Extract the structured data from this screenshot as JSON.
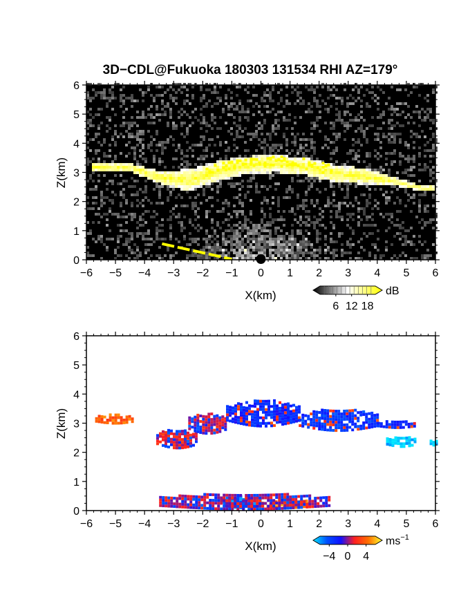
{
  "title": "3D−CDL@Fukuoka 180303 131534 RHI AZ=179°",
  "chart_data": [
    {
      "type": "heatmap",
      "name": "reflectivity",
      "xlabel": "X(km)",
      "ylabel": "Z(km)",
      "xlim": [
        -6,
        6
      ],
      "ylim": [
        0,
        6
      ],
      "xticks": [
        "−6",
        "−5",
        "−4",
        "−3",
        "−2",
        "−1",
        "0",
        "1",
        "2",
        "3",
        "4",
        "5",
        "6"
      ],
      "yticks": [
        "0",
        "1",
        "2",
        "3",
        "4",
        "5",
        "6"
      ],
      "background": "#000000",
      "colorbar": {
        "unit": "dB",
        "ticks": [
          "6",
          "12",
          "18"
        ],
        "tick_values": [
          6,
          12,
          18
        ],
        "range": [
          0,
          21
        ],
        "colors": [
          "#000000",
          "#ffffff",
          "#ffff00"
        ]
      },
      "features": {
        "cloud_layer": {
          "x": [
            -5.6,
            -4.5,
            -3.5,
            -2.5,
            -1.5,
            -0.5,
            0.5,
            1.5,
            2.5,
            3.5,
            4.5,
            5.5
          ],
          "z_bottom": [
            2.95,
            2.95,
            2.55,
            2.3,
            2.65,
            2.9,
            2.95,
            2.85,
            2.6,
            2.55,
            2.5,
            2.3
          ],
          "z_top": [
            3.3,
            3.25,
            3.0,
            3.05,
            3.35,
            3.5,
            3.55,
            3.45,
            3.2,
            3.1,
            2.8,
            2.5
          ]
        },
        "saturated_segments": [
          {
            "x": [
              -1.9,
              2.5
            ],
            "z_band": [
              2.9,
              3.5
            ]
          },
          {
            "x_start": -3.4,
            "z_start": 0.55,
            "x_end": -1.0,
            "z_end": 0.02
          }
        ]
      }
    },
    {
      "type": "heatmap",
      "name": "doppler_velocity",
      "xlabel": "X(km)",
      "ylabel": "Z(km)",
      "xlim": [
        -6,
        6
      ],
      "ylim": [
        0,
        6
      ],
      "xticks": [
        "−6",
        "−5",
        "−4",
        "−3",
        "−2",
        "−1",
        "0",
        "1",
        "2",
        "3",
        "4",
        "5",
        "6"
      ],
      "yticks": [
        "0",
        "1",
        "2",
        "3",
        "4",
        "5",
        "6"
      ],
      "background": "#ffffff",
      "colorbar": {
        "unit": "ms",
        "unit_exp": "−1",
        "ticks": [
          "−4",
          "0",
          "4"
        ],
        "tick_values": [
          -4,
          0,
          4
        ],
        "range": [
          -6,
          6
        ],
        "colors": [
          "#00e5ff",
          "#0050ff",
          "#1010ff",
          "#ff2020",
          "#ff7000",
          "#ffff30"
        ]
      },
      "features": {
        "patches": [
          {
            "x": [
              -5.7,
              -4.4
            ],
            "z": [
              2.95,
              3.25
            ],
            "v": 3.0
          },
          {
            "x": [
              -3.6,
              -2.2
            ],
            "z": [
              2.1,
              2.75
            ],
            "v": 1.0
          },
          {
            "x": [
              -2.5,
              -1.2
            ],
            "z": [
              2.6,
              3.3
            ],
            "v": 0.8
          },
          {
            "x": [
              -1.2,
              1.3
            ],
            "z": [
              2.85,
              3.75
            ],
            "v": -2.2
          },
          {
            "x": [
              1.3,
              4.0
            ],
            "z": [
              2.7,
              3.45
            ],
            "v": -2.6
          },
          {
            "x": [
              4.0,
              5.3
            ],
            "z": [
              2.8,
              3.05
            ],
            "v": -2.0
          },
          {
            "x": [
              4.3,
              5.3
            ],
            "z": [
              2.15,
              2.5
            ],
            "v": -5.8
          },
          {
            "x": [
              5.8,
              6.0
            ],
            "z": [
              2.2,
              2.4
            ],
            "v": -5.8
          },
          {
            "x": [
              -1.4,
              0.0
            ],
            "z": [
              0.05,
              0.45
            ],
            "v": -4.0
          },
          {
            "x": [
              0.0,
              1.7
            ],
            "z": [
              0.05,
              0.35
            ],
            "v": 4.0
          },
          {
            "x": [
              -3.5,
              2.3
            ],
            "z": [
              0.0,
              0.55
            ],
            "v": 0.5
          }
        ]
      }
    }
  ]
}
